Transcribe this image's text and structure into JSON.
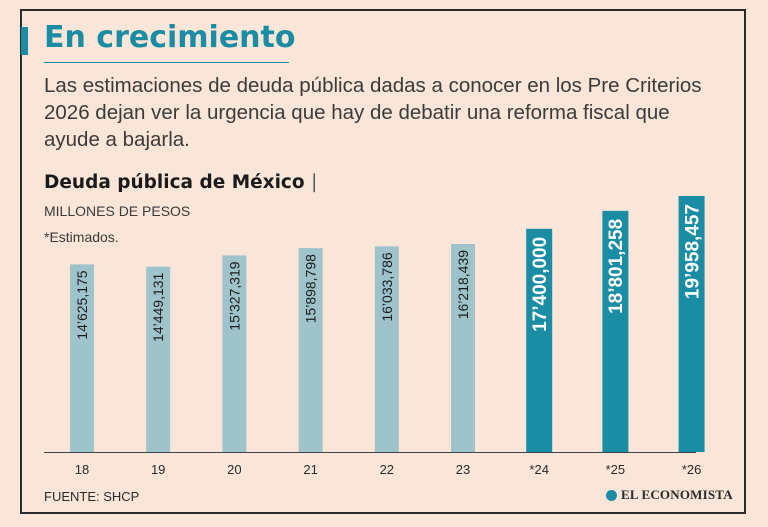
{
  "header": {
    "title": "En crecimiento",
    "subtitle": "Las estimaciones de deuda pública dadas a conocer en los Pre Criterios 2026 dejan ver la urgencia que hay de debatir una reforma fiscal que ayude a bajarla."
  },
  "chart": {
    "title": "Deuda pública de México",
    "separator": "|",
    "units": "MILLONES DE PESOS",
    "note": "*Estimados."
  },
  "footer": {
    "source": "FUENTE: SHCP",
    "brand": "EL ECONOMISTA"
  },
  "colors": {
    "actual": "#9fc3cb",
    "estimate": "#1a8ca3",
    "label": "#1b1b1b",
    "label_on_estimate": "#ffffff"
  },
  "chart_data": {
    "type": "bar",
    "title": "Deuda pública de México",
    "ylabel": "MILLONES DE PESOS",
    "xlabel": "",
    "categories": [
      "18",
      "19",
      "20",
      "21",
      "22",
      "23",
      "*24",
      "*25",
      "*26"
    ],
    "values": [
      14625175,
      14449131,
      15327319,
      15898798,
      16033786,
      16218439,
      17400000,
      18801258,
      19958457
    ],
    "value_labels": [
      "14’625,175",
      "14’449,131",
      "15’327,319",
      "15’898,798",
      "16’033,786",
      "16’218,439",
      "17’400,000",
      "18’801,258",
      "19’958,457"
    ],
    "estimated": [
      false,
      false,
      false,
      false,
      false,
      false,
      true,
      true,
      true
    ],
    "ylim": [
      0,
      19958457
    ],
    "grid": false,
    "legend": "none"
  }
}
